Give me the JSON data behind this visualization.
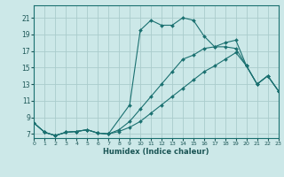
{
  "title": "",
  "xlabel": "Humidex (Indice chaleur)",
  "xlim": [
    0,
    23
  ],
  "ylim": [
    6.5,
    22.5
  ],
  "xticks": [
    0,
    1,
    2,
    3,
    4,
    5,
    6,
    7,
    8,
    9,
    10,
    11,
    12,
    13,
    14,
    15,
    16,
    17,
    18,
    19,
    20,
    21,
    22,
    23
  ],
  "yticks": [
    7,
    9,
    11,
    13,
    15,
    17,
    19,
    21
  ],
  "bg_color": "#cce8e8",
  "grid_color": "#aacccc",
  "line_color": "#1a7070",
  "line1_x": [
    0,
    1,
    2,
    3,
    4,
    5,
    6,
    7,
    9,
    10,
    11,
    12,
    13,
    14,
    15,
    16,
    17,
    18,
    19,
    20,
    21,
    22,
    23
  ],
  "line1_y": [
    8.3,
    7.2,
    6.8,
    7.2,
    7.3,
    7.5,
    7.1,
    7.0,
    10.5,
    19.5,
    20.7,
    20.1,
    20.1,
    21.0,
    20.7,
    18.8,
    17.5,
    17.5,
    17.3,
    15.2,
    13.0,
    14.0,
    12.2
  ],
  "line2_x": [
    0,
    1,
    2,
    3,
    4,
    5,
    6,
    7,
    8,
    9,
    10,
    11,
    12,
    13,
    14,
    15,
    16,
    17,
    18,
    19,
    20,
    21,
    22,
    23
  ],
  "line2_y": [
    8.3,
    7.2,
    6.8,
    7.2,
    7.3,
    7.5,
    7.1,
    7.0,
    7.5,
    8.5,
    10.0,
    11.5,
    13.0,
    14.5,
    16.0,
    16.5,
    17.3,
    17.5,
    18.0,
    18.3,
    15.2,
    13.0,
    14.0,
    12.2
  ],
  "line3_x": [
    0,
    1,
    2,
    3,
    4,
    5,
    6,
    7,
    8,
    9,
    10,
    11,
    12,
    13,
    14,
    15,
    16,
    17,
    18,
    19,
    20,
    21,
    22,
    23
  ],
  "line3_y": [
    8.3,
    7.2,
    6.8,
    7.2,
    7.3,
    7.5,
    7.1,
    7.0,
    7.3,
    7.8,
    8.5,
    9.5,
    10.5,
    11.5,
    12.5,
    13.5,
    14.5,
    15.2,
    16.0,
    16.8,
    15.2,
    13.0,
    14.0,
    12.2
  ]
}
